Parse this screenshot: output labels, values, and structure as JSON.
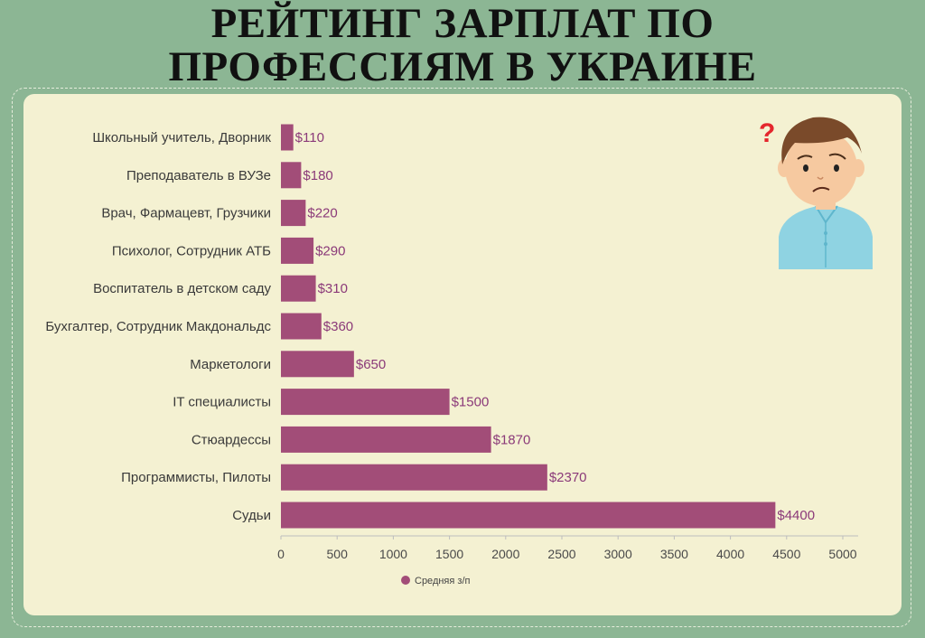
{
  "header": {
    "title_line1": "РЕЙТИНГ ЗАРПЛАТ ПО",
    "title_line2": "ПРОФЕССИЯМ В УКРАИНЕ"
  },
  "chart_data": {
    "type": "bar",
    "orientation": "horizontal",
    "categories": [
      "Школьный учитель, Дворник",
      "Преподаватель в ВУЗе",
      "Врач, Фармацевт, Грузчики",
      "Психолог, Сотрудник АТБ",
      "Воспитатель в детском саду",
      "Бухгалтер, Сотрудник Макдональдс",
      "Маркетологи",
      "IT специалисты",
      "Стюардессы",
      "Программисты, Пилоты",
      "Судьи"
    ],
    "series": [
      {
        "name": "Средняя з/п",
        "values": [
          110,
          180,
          220,
          290,
          310,
          360,
          650,
          1500,
          1870,
          2370,
          4400
        ],
        "color": "#a24d78"
      }
    ],
    "data_labels": [
      "$110",
      "$180",
      "$220",
      "$290",
      "$310",
      "$360",
      "$650",
      "$1500",
      "$1870",
      "$2370",
      "$4400"
    ],
    "xlim": [
      0,
      5000
    ],
    "xticks": [
      0,
      500,
      1000,
      1500,
      2000,
      2500,
      3000,
      3500,
      4000,
      4500,
      5000
    ],
    "xtick_labels": [
      "0",
      "500",
      "1000",
      "1500",
      "2000",
      "2500",
      "3000",
      "3500",
      "4000",
      "4500",
      "5000"
    ],
    "legend_position": "bottom",
    "grid": false,
    "label_color": "#8b3a79"
  },
  "illustration": {
    "icon": "confused-man-icon",
    "mark": "?",
    "mark_color": "#e4262d",
    "shirt_color": "#8fd3e2",
    "hair_color": "#7a4a2a",
    "skin_color": "#f6c9a0"
  }
}
